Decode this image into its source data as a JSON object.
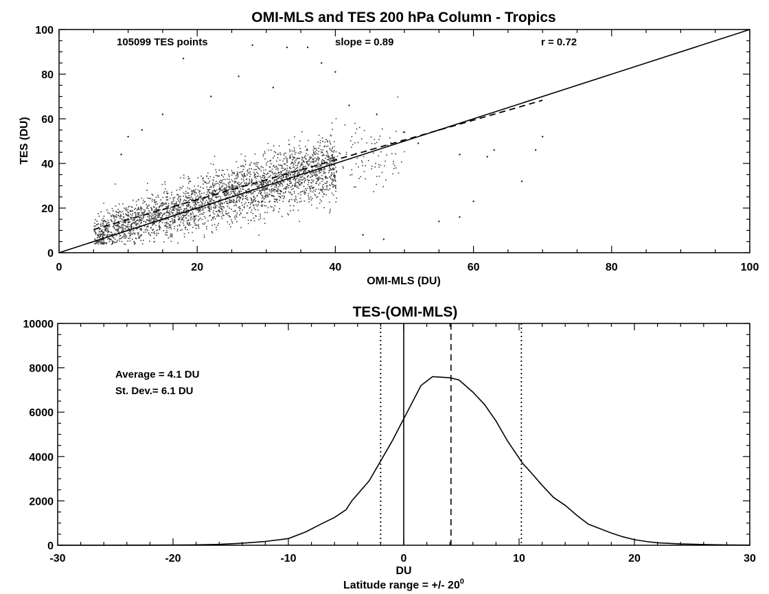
{
  "chart_data": [
    {
      "type": "scatter",
      "title": "OMI-MLS and TES 200 hPa Column - Tropics",
      "xlabel": "OMI-MLS (DU)",
      "ylabel": "TES (DU)",
      "xlim": [
        0,
        100
      ],
      "ylim": [
        0,
        100
      ],
      "xticks": [
        0,
        20,
        40,
        60,
        80,
        100
      ],
      "yticks": [
        0,
        20,
        40,
        60,
        80,
        100
      ],
      "annotations": {
        "points": "105099 TES points",
        "slope": "slope = 0.89",
        "r": "r = 0.72"
      },
      "point_count": 105099,
      "cloud": {
        "x_range": [
          5,
          50
        ],
        "center_line": {
          "slope": 0.89,
          "intercept": 4.1
        },
        "spread_sd": 5.2
      },
      "outliers": [
        [
          28,
          93
        ],
        [
          33,
          92
        ],
        [
          36,
          92
        ],
        [
          18,
          87
        ],
        [
          38,
          85
        ],
        [
          40,
          81
        ],
        [
          26,
          79
        ],
        [
          31,
          74
        ],
        [
          50,
          54
        ],
        [
          55,
          55
        ],
        [
          52,
          49
        ],
        [
          58,
          44
        ],
        [
          62,
          43
        ],
        [
          63,
          46
        ],
        [
          69,
          46
        ],
        [
          70,
          52
        ],
        [
          60,
          23
        ],
        [
          67,
          32
        ],
        [
          58,
          16
        ],
        [
          55,
          14
        ],
        [
          44,
          8
        ],
        [
          47,
          6
        ],
        [
          46,
          62
        ],
        [
          12,
          55
        ],
        [
          9,
          44
        ],
        [
          10,
          52
        ],
        [
          15,
          62
        ],
        [
          22,
          70
        ],
        [
          42,
          66
        ]
      ],
      "series": [
        {
          "values": [
            [
              0,
              0
            ],
            [
              100,
              100
            ]
          ]
        },
        {
          "values": [
            [
              5,
              10.4
            ],
            [
              70,
              68.3
            ]
          ]
        }
      ]
    },
    {
      "type": "line",
      "title": "TES-(OMI-MLS)",
      "xlabel": "DU",
      "subtitle": "Latitude range = +/- 20",
      "subtitle_sup": "0",
      "xlim": [
        -30,
        30
      ],
      "ylim": [
        0,
        10000
      ],
      "xticks": [
        -30,
        -20,
        -10,
        0,
        10,
        20,
        30
      ],
      "yticks": [
        0,
        2000,
        4000,
        6000,
        8000,
        10000
      ],
      "annotations": {
        "average": "Average = 4.1 DU",
        "stdev": "St. Dev.= 6.1 DU"
      },
      "series": [
        {
          "values": [
            [
              -30,
              0
            ],
            [
              -26,
              0
            ],
            [
              -22,
              5
            ],
            [
              -20,
              10
            ],
            [
              -18,
              20
            ],
            [
              -16,
              40
            ],
            [
              -14,
              90
            ],
            [
              -12,
              170
            ],
            [
              -10,
              300
            ],
            [
              -8.5,
              600
            ],
            [
              -7,
              1000
            ],
            [
              -6,
              1250
            ],
            [
              -5,
              1600
            ],
            [
              -4.5,
              2000
            ],
            [
              -3,
              2900
            ],
            [
              -2,
              3800
            ],
            [
              -1,
              4700
            ],
            [
              0,
              5700
            ],
            [
              0.5,
              6200
            ],
            [
              1.5,
              7200
            ],
            [
              2.5,
              7600
            ],
            [
              4,
              7550
            ],
            [
              4.8,
              7450
            ],
            [
              6,
              6900
            ],
            [
              7,
              6350
            ],
            [
              8,
              5600
            ],
            [
              9,
              4700
            ],
            [
              10.3,
              3700
            ],
            [
              11,
              3300
            ],
            [
              12,
              2700
            ],
            [
              13,
              2150
            ],
            [
              14,
              1800
            ],
            [
              15,
              1350
            ],
            [
              16,
              950
            ],
            [
              17,
              750
            ],
            [
              18,
              550
            ],
            [
              19,
              380
            ],
            [
              20,
              250
            ],
            [
              21,
              170
            ],
            [
              22,
              110
            ],
            [
              24,
              60
            ],
            [
              26,
              35
            ],
            [
              28,
              15
            ],
            [
              30,
              5
            ]
          ]
        }
      ],
      "vlines": [
        {
          "x": -2.0,
          "style": "dotted"
        },
        {
          "x": 0,
          "style": "solid"
        },
        {
          "x": 4.1,
          "style": "dashed"
        },
        {
          "x": 10.2,
          "style": "dotted"
        }
      ]
    }
  ]
}
